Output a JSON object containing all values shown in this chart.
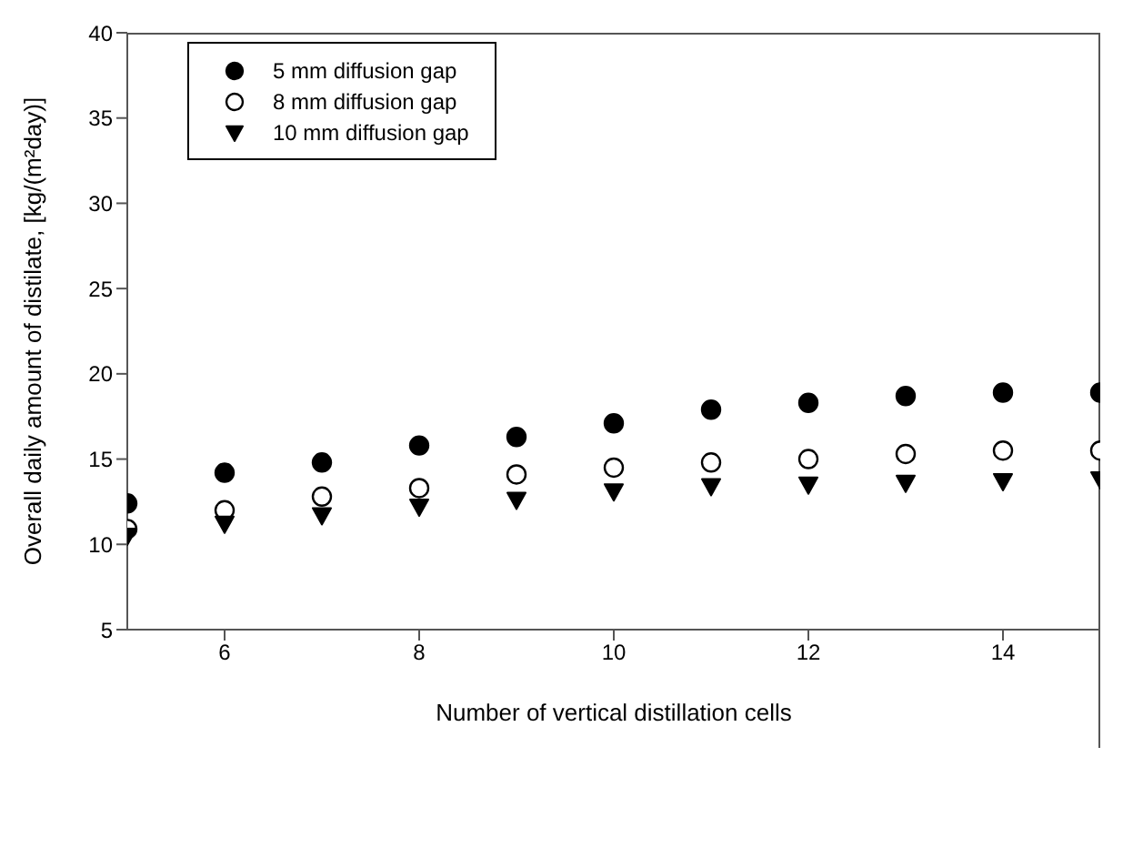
{
  "chart_data": {
    "type": "scatter",
    "xlabel": "Number of vertical distillation cells",
    "ylabel": "Overall daily amount of distilate, [kg/(m²day)]",
    "x": [
      5,
      6,
      7,
      8,
      9,
      10,
      11,
      12,
      13,
      14,
      15
    ],
    "series": [
      {
        "name": "5 mm diffusion gap",
        "color": "#000000",
        "marker": "circle",
        "values": [
          12.4,
          14.2,
          14.8,
          15.8,
          16.3,
          17.1,
          17.9,
          18.3,
          18.7,
          18.9,
          18.9
        ]
      },
      {
        "name": "8 mm diffusion gap",
        "color": "#ffffff",
        "marker": "circle",
        "values": [
          10.9,
          12.0,
          12.8,
          13.3,
          14.1,
          14.5,
          14.8,
          15.0,
          15.3,
          15.5,
          15.5
        ]
      },
      {
        "name": "10 mm diffusion gap",
        "color": "#000000",
        "marker": "triangle",
        "values": [
          10.5,
          11.2,
          11.7,
          12.2,
          12.6,
          13.1,
          13.4,
          13.5,
          13.6,
          13.7,
          13.8
        ]
      }
    ],
    "xlim": [
      5,
      15
    ],
    "xticks": [
      6,
      8,
      10,
      12,
      14
    ],
    "ylim": [
      5,
      40
    ],
    "yticks": [
      5,
      10,
      15,
      20,
      25,
      30,
      35,
      40
    ],
    "grid": false,
    "legend": "top left"
  }
}
